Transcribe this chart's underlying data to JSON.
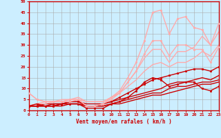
{
  "xlabel": "Vent moyen/en rafales ( km/h )",
  "bg_color": "#cceeff",
  "grid_color": "#aaaaaa",
  "axis_color": "#cc0000",
  "xlim": [
    0,
    23
  ],
  "ylim": [
    0,
    50
  ],
  "xticks": [
    0,
    1,
    2,
    3,
    4,
    5,
    6,
    7,
    8,
    9,
    10,
    11,
    12,
    13,
    14,
    15,
    16,
    17,
    18,
    19,
    20,
    21,
    22,
    23
  ],
  "yticks": [
    0,
    5,
    10,
    15,
    20,
    25,
    30,
    35,
    40,
    45,
    50
  ],
  "lines": [
    {
      "x": [
        0,
        1,
        2,
        3,
        4,
        5,
        6,
        7,
        8,
        9,
        10,
        11,
        12,
        13,
        14,
        15,
        16,
        17,
        18,
        19,
        20,
        21,
        22,
        23
      ],
      "y": [
        2,
        3,
        2,
        2,
        3,
        3,
        3,
        1,
        1,
        1,
        3,
        4,
        6,
        9,
        13,
        15,
        14,
        11,
        12,
        13,
        13,
        10,
        9,
        11
      ],
      "color": "#cc0000",
      "lw": 1.0,
      "marker": "s",
      "ms": 2.0
    },
    {
      "x": [
        0,
        1,
        2,
        3,
        4,
        5,
        6,
        7,
        8,
        9,
        10,
        11,
        12,
        13,
        14,
        15,
        16,
        17,
        18,
        19,
        20,
        21,
        22,
        23
      ],
      "y": [
        2,
        2,
        2,
        2,
        2,
        3,
        3,
        2,
        2,
        2,
        3,
        3,
        4,
        5,
        6,
        7,
        7,
        8,
        9,
        10,
        11,
        12,
        12,
        13
      ],
      "color": "#cc0000",
      "lw": 1.0,
      "marker": null,
      "ms": 0
    },
    {
      "x": [
        0,
        1,
        2,
        3,
        4,
        5,
        6,
        7,
        8,
        9,
        10,
        11,
        12,
        13,
        14,
        15,
        16,
        17,
        18,
        19,
        20,
        21,
        22,
        23
      ],
      "y": [
        2,
        2,
        2,
        2,
        3,
        3,
        3,
        2,
        2,
        2,
        3,
        4,
        5,
        6,
        7,
        8,
        8,
        10,
        11,
        11,
        12,
        13,
        13,
        14
      ],
      "color": "#cc0000",
      "lw": 1.0,
      "marker": null,
      "ms": 0
    },
    {
      "x": [
        0,
        1,
        2,
        3,
        4,
        5,
        6,
        7,
        8,
        9,
        10,
        11,
        12,
        13,
        14,
        15,
        16,
        17,
        18,
        19,
        20,
        21,
        22,
        23
      ],
      "y": [
        2,
        2,
        3,
        3,
        3,
        4,
        4,
        3,
        3,
        3,
        4,
        5,
        6,
        7,
        8,
        9,
        10,
        12,
        13,
        13,
        14,
        15,
        14,
        16
      ],
      "color": "#cc0000",
      "lw": 1.0,
      "marker": null,
      "ms": 0
    },
    {
      "x": [
        0,
        1,
        2,
        3,
        4,
        5,
        6,
        7,
        8,
        9,
        10,
        11,
        12,
        13,
        14,
        15,
        16,
        17,
        18,
        19,
        20,
        21,
        22,
        23
      ],
      "y": [
        2,
        2,
        2,
        3,
        3,
        4,
        4,
        2,
        2,
        3,
        4,
        6,
        8,
        10,
        12,
        14,
        15,
        16,
        17,
        18,
        19,
        19,
        18,
        20
      ],
      "color": "#cc0000",
      "lw": 1.0,
      "marker": "s",
      "ms": 2.0
    },
    {
      "x": [
        0,
        1,
        2,
        3,
        4,
        5,
        6,
        7,
        8,
        9,
        10,
        11,
        12,
        13,
        14,
        15,
        16,
        17,
        18,
        19,
        20,
        21,
        22,
        23
      ],
      "y": [
        8,
        5,
        4,
        4,
        4,
        4,
        5,
        2,
        2,
        3,
        5,
        8,
        13,
        18,
        26,
        32,
        32,
        25,
        30,
        30,
        28,
        28,
        22,
        29
      ],
      "color": "#ffaaaa",
      "lw": 1.0,
      "marker": "s",
      "ms": 2.0
    },
    {
      "x": [
        0,
        1,
        2,
        3,
        4,
        5,
        6,
        7,
        8,
        9,
        10,
        11,
        12,
        13,
        14,
        15,
        16,
        17,
        18,
        19,
        20,
        21,
        22,
        23
      ],
      "y": [
        2,
        3,
        3,
        4,
        4,
        5,
        5,
        4,
        4,
        4,
        6,
        8,
        11,
        14,
        18,
        21,
        22,
        20,
        22,
        22,
        24,
        27,
        25,
        30
      ],
      "color": "#ffaaaa",
      "lw": 1.0,
      "marker": null,
      "ms": 0
    },
    {
      "x": [
        0,
        1,
        2,
        3,
        4,
        5,
        6,
        7,
        8,
        9,
        10,
        11,
        12,
        13,
        14,
        15,
        16,
        17,
        18,
        19,
        20,
        21,
        22,
        23
      ],
      "y": [
        2,
        3,
        4,
        4,
        5,
        5,
        6,
        4,
        4,
        4,
        6,
        8,
        13,
        18,
        24,
        28,
        28,
        22,
        27,
        27,
        29,
        34,
        30,
        36
      ],
      "color": "#ffaaaa",
      "lw": 1.0,
      "marker": null,
      "ms": 0
    },
    {
      "x": [
        0,
        1,
        2,
        3,
        4,
        5,
        6,
        7,
        8,
        9,
        10,
        11,
        12,
        13,
        14,
        15,
        16,
        17,
        18,
        19,
        20,
        21,
        22,
        23
      ],
      "y": [
        8,
        5,
        4,
        4,
        4,
        5,
        5,
        2,
        2,
        3,
        6,
        9,
        15,
        22,
        32,
        45,
        46,
        35,
        42,
        43,
        38,
        37,
        30,
        40
      ],
      "color": "#ffaaaa",
      "lw": 1.0,
      "marker": "s",
      "ms": 2.0
    }
  ]
}
